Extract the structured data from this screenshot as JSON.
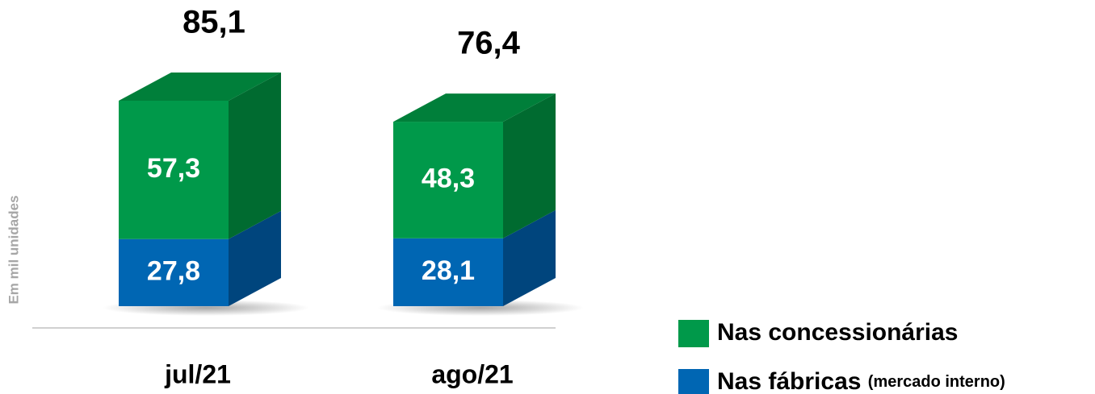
{
  "chart_data": {
    "type": "bar3d_stacked",
    "y_label": "Em mil unidades",
    "categories": [
      "jul/21",
      "ago/21"
    ],
    "series": [
      {
        "name": "Nas fábricas",
        "name_note": "(mercado interno)",
        "color": "#0066b3",
        "side_color": "#00457d",
        "values": [
          27.8,
          28.1
        ],
        "value_labels": [
          "27,8",
          "28,1"
        ]
      },
      {
        "name": "Nas concessionárias",
        "color": "#00994a",
        "side_color": "#006b30",
        "top_color": "#007f3a",
        "values": [
          57.3,
          48.3
        ],
        "value_labels": [
          "57,3",
          "48,3"
        ]
      }
    ],
    "totals": [
      85.1,
      76.4
    ],
    "total_labels": [
      "85,1",
      "76,4"
    ]
  }
}
